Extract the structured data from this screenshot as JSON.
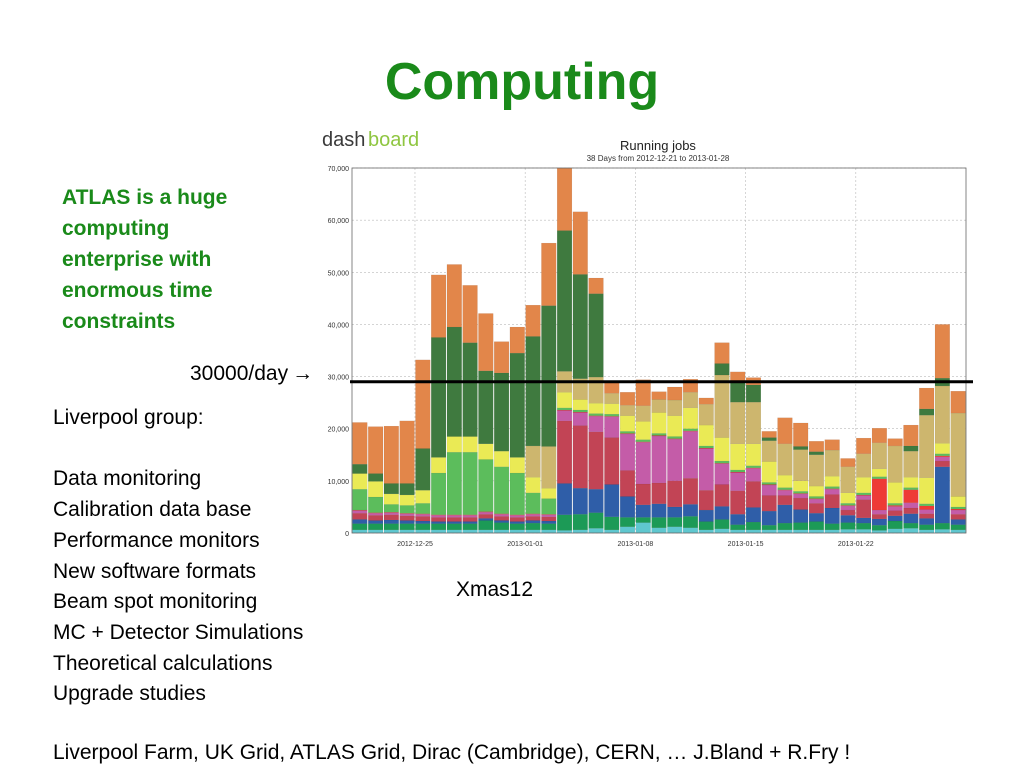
{
  "slide": {
    "title": "Computing",
    "blurb_lines": [
      "ATLAS is a huge",
      "computing",
      "enterprise with",
      "enormous time",
      "constraints"
    ],
    "threshold_label": "30000/day",
    "threshold_arrow": "→",
    "group_title": "Liverpool group:",
    "group_items": [
      "Data monitoring",
      "Calibration data base",
      "Performance monitors",
      "New software formats",
      "Beam spot monitoring",
      "MC + Detector Simulations",
      "Theoretical calculations",
      "Upgrade studies"
    ],
    "xmas_label": "Xmas12",
    "footer": "Liverpool  Farm, UK Grid, ATLAS Grid, Dirac (Cambridge), CERN, …  J.Bland + R.Fry !"
  },
  "chart_data": {
    "type": "bar",
    "stacked": true,
    "brand": {
      "left": "dash",
      "right": "board",
      "left_color": "#3a3a3a",
      "right_color": "#8fc641"
    },
    "title": "Running jobs",
    "subtitle": "38 Days from 2012-12-21 to 2013-01-28",
    "ylim": [
      0,
      70000
    ],
    "yticks": [
      "0",
      "10,000",
      "20,000",
      "30,000",
      "40,000",
      "50,000",
      "60,000",
      "70,000"
    ],
    "ytick_values": [
      0,
      10000,
      20000,
      30000,
      40000,
      50000,
      60000,
      70000
    ],
    "xticks": [
      {
        "label": "2012-12-25",
        "index": 4
      },
      {
        "label": "2013-01-01",
        "index": 11
      },
      {
        "label": "2013-01-08",
        "index": 18
      },
      {
        "label": "2013-01-15",
        "index": 25
      },
      {
        "label": "2013-01-22",
        "index": 32
      }
    ],
    "grid": true,
    "threshold": {
      "value": 29000,
      "color": "#000000"
    },
    "series_colors": [
      "#5fc7cf",
      "#1c9a56",
      "#2f5ea8",
      "#c24455",
      "#c45ca8",
      "#ee3a36",
      "#5cbd5c",
      "#eaea55",
      "#cdb66e",
      "#3f7a3f",
      "#e2864a"
    ],
    "series": [
      {
        "color": "#5fc7cf",
        "values": [
          600,
          600,
          600,
          600,
          600,
          600,
          600,
          600,
          600,
          600,
          600,
          600,
          600,
          500,
          600,
          900,
          600,
          1200,
          2000,
          1000,
          1200,
          1000,
          600,
          800,
          600,
          600,
          600,
          600,
          600,
          600,
          600,
          700,
          700,
          500,
          800,
          900,
          600,
          700,
          600
        ]
      },
      {
        "color": "#1c9a56",
        "values": [
          1200,
          1200,
          1200,
          1200,
          1200,
          1200,
          1200,
          1200,
          1800,
          1400,
          1200,
          1300,
          1200,
          3000,
          3000,
          3000,
          2500,
          1800,
          1000,
          2000,
          1800,
          2200,
          1600,
          1800,
          1000,
          1500,
          900,
          1300,
          1400,
          1600,
          1200,
          1300,
          1200,
          1000,
          1500,
          1000,
          1000,
          1200,
          1000
        ]
      },
      {
        "color": "#2f5ea8",
        "values": [
          800,
          600,
          700,
          600,
          500,
          400,
          400,
          400,
          400,
          400,
          400,
          500,
          500,
          6000,
          5000,
          4500,
          6200,
          4000,
          2400,
          2600,
          2000,
          2300,
          2200,
          2500,
          2000,
          2800,
          2700,
          3500,
          2500,
          1600,
          3000,
          1400,
          1000,
          1200,
          1000,
          1800,
          1200,
          10800,
          1000
        ]
      },
      {
        "color": "#c24455",
        "values": [
          1200,
          1000,
          1000,
          900,
          900,
          800,
          800,
          800,
          800,
          800,
          800,
          800,
          800,
          12000,
          12000,
          11000,
          9000,
          5000,
          4000,
          4000,
          5000,
          5000,
          3800,
          4200,
          4500,
          5000,
          3000,
          1800,
          2200,
          1900,
          2600,
          1000,
          3500,
          900,
          1000,
          1100,
          900,
          1100,
          1000
        ]
      },
      {
        "color": "#c45ca8",
        "values": [
          500,
          400,
          400,
          400,
          400,
          400,
          400,
          400,
          400,
          400,
          400,
          400,
          400,
          2000,
          2500,
          3000,
          4000,
          7000,
          8000,
          9000,
          8000,
          9000,
          8000,
          4000,
          3500,
          2500,
          2000,
          1000,
          800,
          800,
          1000,
          800,
          800,
          800,
          800,
          1000,
          800,
          800,
          800
        ]
      },
      {
        "color": "#ee3a36",
        "values": [
          100,
          100,
          100,
          100,
          100,
          100,
          100,
          100,
          100,
          100,
          100,
          100,
          100,
          100,
          100,
          100,
          100,
          100,
          100,
          100,
          100,
          100,
          100,
          100,
          100,
          100,
          100,
          100,
          100,
          100,
          100,
          100,
          100,
          6000,
          200,
          2500,
          700,
          200,
          200
        ]
      },
      {
        "color": "#5cbd5c",
        "values": [
          4000,
          3000,
          1500,
          1500,
          2000,
          8000,
          12000,
          12000,
          10000,
          9000,
          8000,
          4000,
          3000,
          400,
          400,
          400,
          400,
          400,
          400,
          400,
          400,
          400,
          400,
          400,
          400,
          400,
          400,
          400,
          400,
          400,
          400,
          400,
          400,
          400,
          400,
          400,
          400,
          400,
          400
        ]
      },
      {
        "color": "#eaea55",
        "values": [
          3000,
          3000,
          2000,
          2000,
          2500,
          3000,
          3000,
          3000,
          3000,
          3000,
          3000,
          3000,
          2000,
          3000,
          2000,
          2000,
          2000,
          3000,
          3500,
          4000,
          4000,
          4000,
          4000,
          4500,
          5000,
          4200,
          4000,
          2400,
          2000,
          2000,
          2000,
          2000,
          3000,
          1500,
          4000,
          2000,
          5000,
          2000,
          2000
        ]
      },
      {
        "color": "#cdb66e",
        "values": [
          0,
          0,
          0,
          0,
          0,
          0,
          0,
          0,
          0,
          0,
          0,
          6000,
          8000,
          4000,
          4000,
          5000,
          2000,
          2000,
          3000,
          2500,
          3000,
          3000,
          4000,
          12000,
          8000,
          8000,
          4000,
          6000,
          6000,
          6000,
          5000,
          5000,
          4500,
          5000,
          7000,
          5000,
          12000,
          11000,
          16000
        ]
      },
      {
        "color": "#3f7a3f",
        "values": [
          1800,
          1500,
          2000,
          2200,
          8000,
          23000,
          21000,
          18000,
          14000,
          15000,
          20000,
          21000,
          27000,
          27000,
          20000,
          16000,
          0,
          0,
          0,
          0,
          0,
          0,
          0,
          2200,
          3800,
          3300,
          600,
          0,
          600,
          600,
          0,
          0,
          0,
          0,
          0,
          1000,
          1200,
          1500,
          0
        ]
      },
      {
        "color": "#e2864a",
        "values": [
          8000,
          9000,
          11000,
          12000,
          17000,
          12000,
          12000,
          11000,
          11000,
          6000,
          5000,
          6000,
          12000,
          12000,
          12000,
          3000,
          2000,
          2500,
          5000,
          1500,
          2500,
          2500,
          1200,
          4000,
          2000,
          1400,
          1200,
          5000,
          4500,
          2000,
          2000,
          1600,
          3000,
          2800,
          1400,
          4000,
          4000,
          10300,
          4200
        ]
      }
    ]
  }
}
